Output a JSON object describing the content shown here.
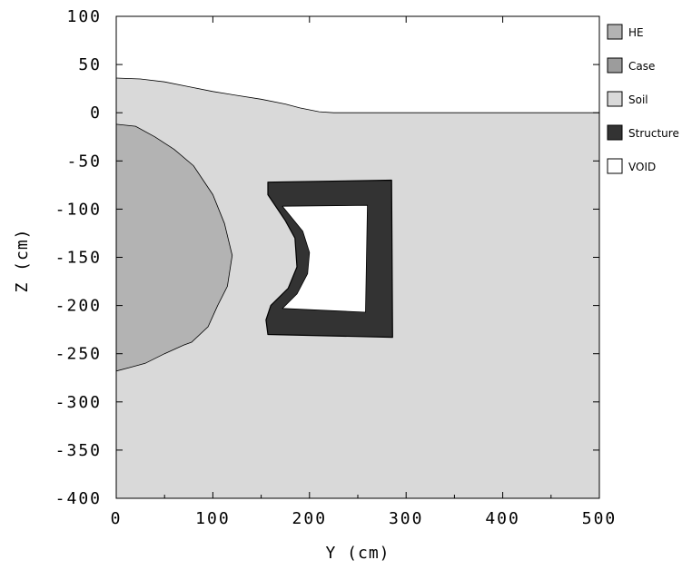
{
  "chart_data": {
    "type": "area",
    "title": "",
    "xlabel": "Y (cm)",
    "ylabel": "Z (cm)",
    "xlim": [
      0,
      500
    ],
    "ylim": [
      -400,
      100
    ],
    "x_ticks": [
      "0",
      "100",
      "200",
      "300",
      "400",
      "500"
    ],
    "y_ticks": [
      "100",
      "50",
      "0",
      "-50",
      "-100",
      "-150",
      "-200",
      "-250",
      "-300",
      "-350",
      "-400"
    ],
    "grid": false,
    "legend_position": "right",
    "legend": [
      {
        "label": "HE",
        "color": "#b3b3b3"
      },
      {
        "label": "Case",
        "color": "#9c9c9c"
      },
      {
        "label": "Soil",
        "color": "#d9d9d9"
      },
      {
        "label": "Structure",
        "color": "#333333"
      },
      {
        "label": "VOID",
        "color": "#ffffff"
      }
    ],
    "regions": {
      "soil_surface": {
        "material": "Soil",
        "points": [
          [
            0,
            36
          ],
          [
            25,
            35
          ],
          [
            50,
            32
          ],
          [
            75,
            27
          ],
          [
            100,
            22
          ],
          [
            125,
            18
          ],
          [
            150,
            14
          ],
          [
            175,
            9
          ],
          [
            190,
            5
          ],
          [
            210,
            1
          ],
          [
            225,
            0
          ],
          [
            300,
            0
          ],
          [
            400,
            0
          ],
          [
            500,
            0
          ]
        ]
      },
      "he_charge": {
        "material": "HE",
        "points": [
          [
            0,
            -12
          ],
          [
            20,
            -14
          ],
          [
            40,
            -25
          ],
          [
            60,
            -38
          ],
          [
            80,
            -55
          ],
          [
            100,
            -85
          ],
          [
            112,
            -115
          ],
          [
            120,
            -148
          ],
          [
            115,
            -180
          ],
          [
            105,
            -200
          ],
          [
            95,
            -222
          ],
          [
            78,
            -238
          ],
          [
            70,
            -241
          ],
          [
            50,
            -250
          ],
          [
            30,
            -260
          ],
          [
            15,
            -264
          ],
          [
            0,
            -268
          ]
        ]
      },
      "structure_outer": {
        "material": "Structure",
        "points": [
          [
            157,
            -72
          ],
          [
            285,
            -70
          ],
          [
            286,
            -233
          ],
          [
            157,
            -230
          ],
          [
            155,
            -215
          ],
          [
            160,
            -200
          ],
          [
            178,
            -182
          ],
          [
            187,
            -160
          ],
          [
            185,
            -130
          ],
          [
            175,
            -112
          ],
          [
            157,
            -85
          ]
        ]
      },
      "structure_inner_void": {
        "material": "VOID",
        "points": [
          [
            172,
            -97
          ],
          [
            260,
            -96
          ],
          [
            258,
            -207
          ],
          [
            172,
            -203
          ],
          [
            187,
            -188
          ],
          [
            198,
            -167
          ],
          [
            200,
            -145
          ],
          [
            193,
            -123
          ]
        ]
      }
    }
  }
}
